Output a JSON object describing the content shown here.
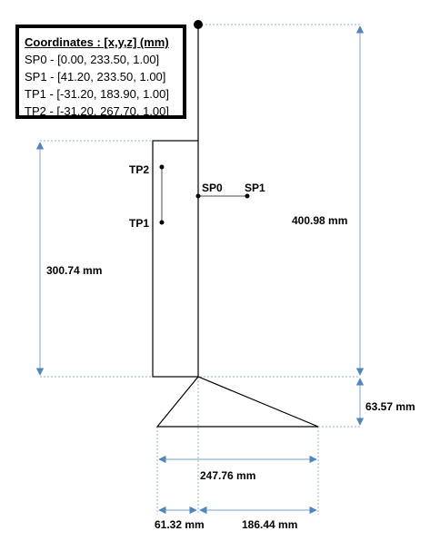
{
  "coordinates_box": {
    "title": "Coordinates : [x,y,z] (mm)",
    "entries": [
      "SP0 - [0.00, 233.50, 1.00]",
      "SP1 - [41.20, 233.50, 1.00]",
      "TP1 - [-31.20, 183.90, 1.00]",
      "TP2 - [-31.20, 267.70, 1.00]"
    ]
  },
  "points": {
    "sp0": "SP0",
    "sp1": "SP1",
    "tp1": "TP1",
    "tp2": "TP2"
  },
  "dimensions": {
    "total_height": "400.98 mm",
    "body_height": "300.74 mm",
    "base_height": "63.57 mm",
    "base_width": "247.76 mm",
    "left_offset": "61.32 mm",
    "right_offset": "186.44 mm"
  },
  "colors": {
    "dimension_line": "#8fb4d6",
    "dimension_arrow": "#4f86c1",
    "probe_line": "#a6a6a6",
    "outline": "#000000"
  }
}
